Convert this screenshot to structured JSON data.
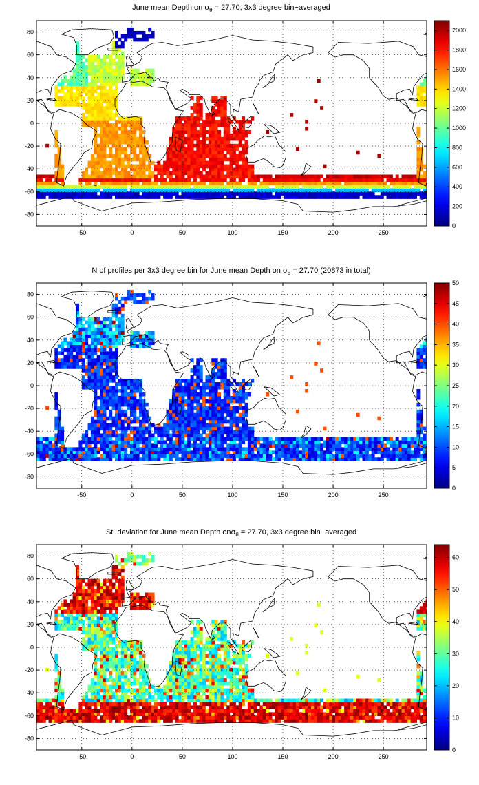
{
  "chart_data": [
    {
      "type": "heatmap",
      "title_pre": "June mean Depth on ",
      "title_post": " = 27.70, 3x3 degree bin−averaged",
      "sigma": "σ",
      "sigma_sub": "θ",
      "xlabel": "",
      "ylabel": "",
      "xlim": [
        -95,
        293
      ],
      "ylim": [
        -90,
        90
      ],
      "xticks": [
        -50,
        0,
        50,
        100,
        150,
        200,
        250
      ],
      "yticks": [
        -80,
        -60,
        -40,
        -20,
        0,
        20,
        40,
        60,
        80
      ],
      "grid": true,
      "colorbar": {
        "min": 0,
        "max": 2100,
        "ticks": [
          0,
          200,
          400,
          600,
          800,
          1000,
          1200,
          1400,
          1600,
          1800,
          2000
        ],
        "colormap": "jet"
      }
    },
    {
      "type": "heatmap",
      "title_pre": "N of profiles per 3x3 degree bin for June mean Depth on ",
      "title_post": " = 27.70 (20873 in total)",
      "sigma": "σ",
      "sigma_sub": "θ",
      "xlabel": "",
      "ylabel": "",
      "xlim": [
        -95,
        293
      ],
      "ylim": [
        -90,
        90
      ],
      "xticks": [
        -50,
        0,
        50,
        100,
        150,
        200,
        250
      ],
      "yticks": [
        -80,
        -60,
        -40,
        -20,
        0,
        20,
        40,
        60,
        80
      ],
      "grid": true,
      "colorbar": {
        "min": 0,
        "max": 50,
        "ticks": [
          0,
          5,
          10,
          15,
          20,
          25,
          30,
          35,
          40,
          45,
          50
        ],
        "colormap": "jet"
      }
    },
    {
      "type": "heatmap",
      "title_pre": "St. deviation for June mean Depth on",
      "title_post": " = 27.70, 3x3 degree bin−averaged",
      "sigma": "σ",
      "sigma_sub": "θ",
      "xlabel": "",
      "ylabel": "",
      "xlim": [
        -95,
        293
      ],
      "ylim": [
        -90,
        90
      ],
      "xticks": [
        -50,
        0,
        50,
        100,
        150,
        200,
        250
      ],
      "yticks": [
        -80,
        -60,
        -40,
        -20,
        0,
        20,
        40,
        60,
        80
      ],
      "grid": true,
      "colorbar": {
        "min": 0,
        "max": 64,
        "ticks": [
          0,
          10,
          20,
          30,
          40,
          50,
          60
        ],
        "colormap": "jet"
      }
    }
  ]
}
